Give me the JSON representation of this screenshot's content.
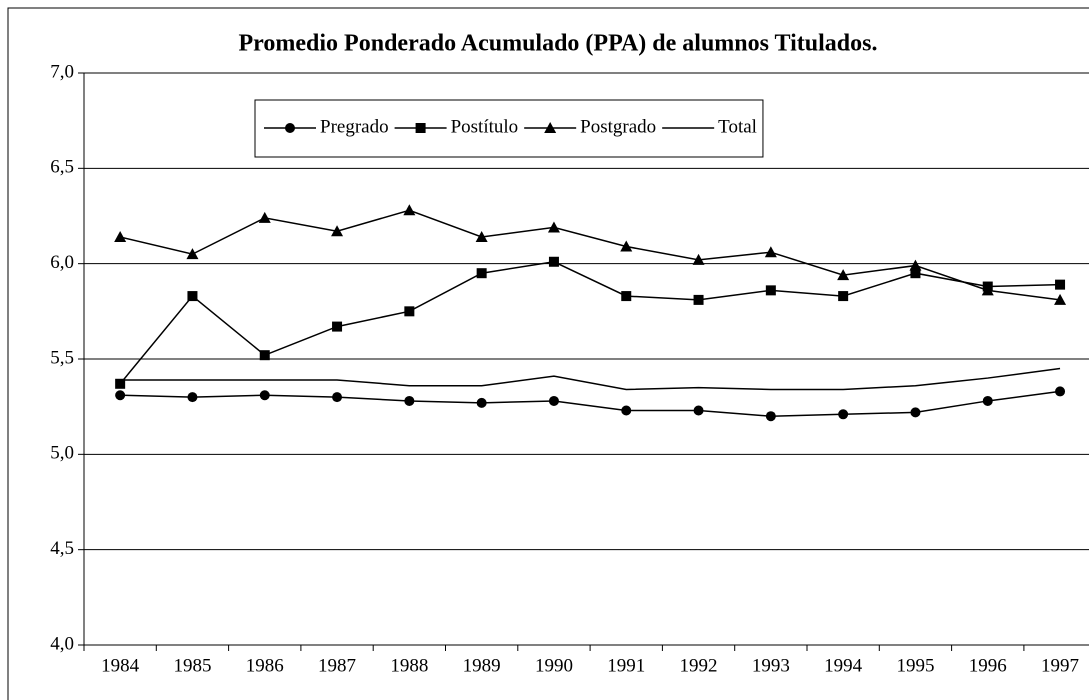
{
  "chart_data": {
    "type": "line",
    "title": "Promedio Ponderado Acumulado (PPA) de alumnos Titulados.",
    "categories": [
      "1984",
      "1985",
      "1986",
      "1987",
      "1988",
      "1989",
      "1990",
      "1991",
      "1992",
      "1993",
      "1994",
      "1995",
      "1996",
      "1997"
    ],
    "series": [
      {
        "name": "Pregrado",
        "color": "#000000",
        "marker": "circle",
        "values": [
          5.31,
          5.3,
          5.31,
          5.3,
          5.28,
          5.27,
          5.28,
          5.23,
          5.23,
          5.2,
          5.21,
          5.22,
          5.28,
          5.33
        ]
      },
      {
        "name": "Postítulo",
        "color": "#000000",
        "marker": "square",
        "values": [
          5.37,
          5.83,
          5.52,
          5.67,
          5.75,
          5.95,
          6.01,
          5.83,
          5.81,
          5.86,
          5.83,
          5.95,
          5.88,
          5.89
        ]
      },
      {
        "name": "Postgrado",
        "color": "#000000",
        "marker": "triangle",
        "values": [
          6.14,
          6.05,
          6.24,
          6.17,
          6.28,
          6.14,
          6.19,
          6.09,
          6.02,
          6.06,
          5.94,
          5.99,
          5.86,
          5.81
        ]
      },
      {
        "name": "Total",
        "color": "#000000",
        "marker": "none",
        "values": [
          5.39,
          5.39,
          5.39,
          5.39,
          5.36,
          5.36,
          5.41,
          5.34,
          5.35,
          5.34,
          5.34,
          5.36,
          5.4,
          5.45
        ]
      }
    ],
    "ylim": [
      4,
      7
    ],
    "yticks": [
      {
        "value": 4,
        "label": "4,0"
      },
      {
        "value": 4.5,
        "label": "4,5"
      },
      {
        "value": 5,
        "label": "5,0"
      },
      {
        "value": 5.5,
        "label": "5,5"
      },
      {
        "value": 6,
        "label": "6,0"
      },
      {
        "value": 6.5,
        "label": "6,5"
      },
      {
        "value": 7,
        "label": "7,0"
      }
    ],
    "grid": true,
    "legend": "top"
  }
}
